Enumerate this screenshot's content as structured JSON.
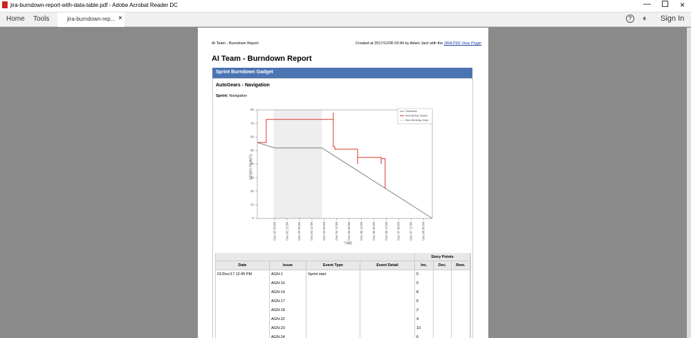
{
  "window": {
    "title": "jira-burndown-report-with-data-table.pdf - Adobe Acrobat Reader DC"
  },
  "toolbar": {
    "home": "Home",
    "tools": "Tools",
    "tab": "jira-burndown-rep...",
    "sign_in": "Sign In"
  },
  "report": {
    "header_left": "AI Team - Burndown Report",
    "header_right": "Created at 2017/12/06 03:40 by Adam Jack with the",
    "header_link": "JIRA PDF View Plugin",
    "title": "AI Team - Burndown Report",
    "gadget": "Sprint Burndown Gadget",
    "subtitle": "AutoGears - Navigation",
    "sprint_label": "Sprint:",
    "sprint": "Navigation"
  },
  "chart_data": {
    "type": "line",
    "xlabel": "TIME",
    "ylabel": "STORY POINTS",
    "xlim": [
      0.3,
      7.35
    ],
    "ylim": [
      0,
      80
    ],
    "yticks": [
      0,
      10,
      20,
      30,
      40,
      50,
      60,
      70,
      80
    ],
    "xticks": [
      {
        "value": 1.0,
        "label": "Dec 02 00:00"
      },
      {
        "value": 1.5,
        "label": "Dec 02 12:00"
      },
      {
        "value": 2.0,
        "label": "Dec 03 00:00"
      },
      {
        "value": 2.5,
        "label": "Dec 03 12:00"
      },
      {
        "value": 3.0,
        "label": "Dec 04 00:00"
      },
      {
        "value": 3.5,
        "label": "Dec 04 12:00"
      },
      {
        "value": 4.0,
        "label": "Dec 05 00:00"
      },
      {
        "value": 4.5,
        "label": "Dec 05 12:00"
      },
      {
        "value": 5.0,
        "label": "Dec 06 00:00"
      },
      {
        "value": 5.5,
        "label": "Dec 06 12:00"
      },
      {
        "value": 6.0,
        "label": "Dec 07 00:00"
      },
      {
        "value": 6.5,
        "label": "Dec 07 12:00"
      },
      {
        "value": 7.0,
        "label": "Dec 08 00:00"
      }
    ],
    "series": [
      {
        "name": "Guideline",
        "color": "#7f7f7f",
        "x": [
          0.3,
          1.0,
          2.9,
          7.35
        ],
        "values": [
          56,
          52,
          52,
          0
        ]
      },
      {
        "name": "Remaining Values",
        "color": "#d9342b",
        "x": [
          0.3,
          0.66,
          0.66,
          3.36,
          3.36,
          3.36,
          3.42,
          3.42,
          4.34,
          4.34,
          4.34,
          4.34,
          5.29,
          5.29,
          5.29,
          5.45,
          5.45
        ],
        "values": [
          56,
          56,
          73,
          73,
          78,
          53,
          53,
          51,
          51,
          45,
          40,
          45,
          45,
          40,
          44,
          44,
          22
        ]
      }
    ],
    "non_working": {
      "name": "Non-Working Days",
      "color": "#eeeeee",
      "ranges": [
        [
          0.95,
          2.9
        ]
      ]
    }
  },
  "table": {
    "group_header": "Story Points",
    "columns": [
      "Date",
      "Issue",
      "Event Type",
      "Event Detail",
      "Inc.",
      "Dec.",
      "Rem."
    ],
    "rows": [
      {
        "date": "01/Dec/17 12:45 PM",
        "issue": "AGN-1",
        "event_type": "Sprint start",
        "inc": 5
      },
      {
        "issue": "AGN-10",
        "inc": 0
      },
      {
        "issue": "AGN-14",
        "inc": 8
      },
      {
        "issue": "AGN-17",
        "inc": 5
      },
      {
        "issue": "AGN-18",
        "inc": 2
      },
      {
        "issue": "AGN-22",
        "inc": 4
      },
      {
        "issue": "AGN-23",
        "inc": 10
      },
      {
        "issue": "AGN-24",
        "inc": 6
      }
    ]
  }
}
